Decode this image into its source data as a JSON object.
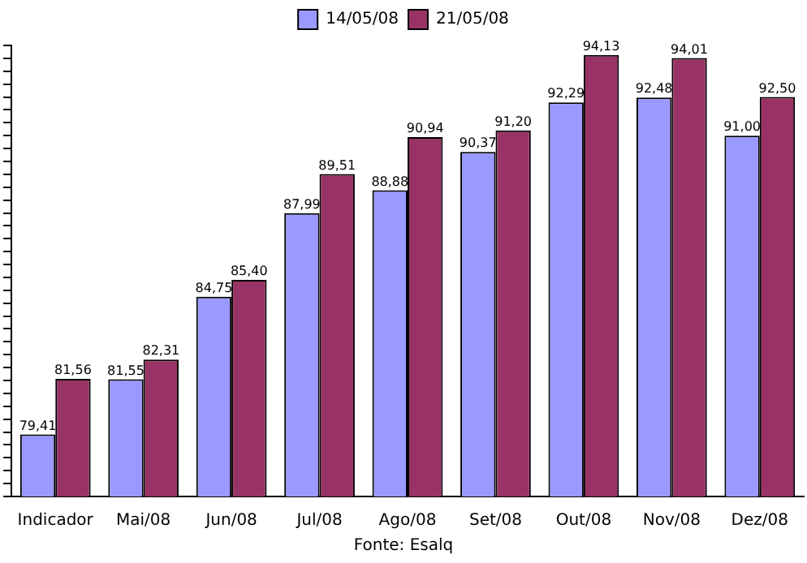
{
  "chart_data": {
    "type": "bar",
    "categories": [
      "Indicador",
      "Mai/08",
      "Jun/08",
      "Jul/08",
      "Ago/08",
      "Set/08",
      "Out/08",
      "Nov/08",
      "Dez/08"
    ],
    "series": [
      {
        "name": "14/05/08",
        "color": "#9999ff",
        "values": [
          79.41,
          81.55,
          84.75,
          87.99,
          88.88,
          90.37,
          92.29,
          92.48,
          91.0
        ],
        "value_labels": [
          "79,41",
          "81,55",
          "84,75",
          "87,99",
          "88,88",
          "90,37",
          "92,29",
          "92,48",
          "91,00"
        ]
      },
      {
        "name": "21/05/08",
        "color": "#993366",
        "values": [
          81.56,
          82.31,
          85.4,
          89.51,
          90.94,
          91.2,
          94.13,
          94.01,
          92.5
        ],
        "value_labels": [
          "81,56",
          "82,31",
          "85,40",
          "89,51",
          "90,94",
          "91,20",
          "94,13",
          "94,01",
          "92,50"
        ]
      }
    ],
    "ylim": [
      77,
      94.5
    ],
    "yticks": [
      {
        "value": 77,
        "label": null
      },
      {
        "value": 77.5,
        "label": null
      },
      {
        "value": 78,
        "label": null
      },
      {
        "value": 78.5,
        "label": null
      },
      {
        "value": 79,
        "label": null
      },
      {
        "value": 79.5,
        "label": null
      },
      {
        "value": 80,
        "label": null
      },
      {
        "value": 80.5,
        "label": null
      },
      {
        "value": 81,
        "label": null
      },
      {
        "value": 81.5,
        "label": null
      },
      {
        "value": 82,
        "label": null
      },
      {
        "value": 82.5,
        "label": null
      },
      {
        "value": 83,
        "label": null
      },
      {
        "value": 83.5,
        "label": null
      },
      {
        "value": 84,
        "label": null
      },
      {
        "value": 84.5,
        "label": null
      },
      {
        "value": 85,
        "label": null
      },
      {
        "value": 85.5,
        "label": null
      },
      {
        "value": 86,
        "label": null
      },
      {
        "value": 86.5,
        "label": null
      },
      {
        "value": 87,
        "label": null
      },
      {
        "value": 87.5,
        "label": null
      },
      {
        "value": 88,
        "label": null
      },
      {
        "value": 88.5,
        "label": null
      },
      {
        "value": 89,
        "label": null
      },
      {
        "value": 89.5,
        "label": null
      },
      {
        "value": 90,
        "label": null
      },
      {
        "value": 90.5,
        "label": null
      },
      {
        "value": 91,
        "label": null
      },
      {
        "value": 91.5,
        "label": null
      },
      {
        "value": 92,
        "label": null
      },
      {
        "value": 92.5,
        "label": null
      },
      {
        "value": 93,
        "label": null
      },
      {
        "value": 93.5,
        "label": null
      },
      {
        "value": 94,
        "label": null
      },
      {
        "value": 94.5,
        "label": null
      }
    ],
    "tick_labels": "x",
    "grid": false,
    "legend": "top",
    "annotations": [
      "Fonte: Esalq"
    ]
  }
}
